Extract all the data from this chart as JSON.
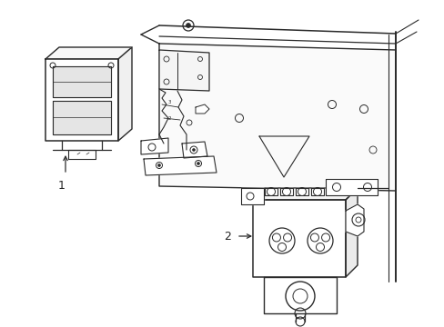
{
  "bg_color": "#ffffff",
  "line_color": "#2a2a2a",
  "line_width": 1.0,
  "label_color": "#222222",
  "fig_width": 4.89,
  "fig_height": 3.6,
  "dpi": 100,
  "label1": "1",
  "label2": "2"
}
